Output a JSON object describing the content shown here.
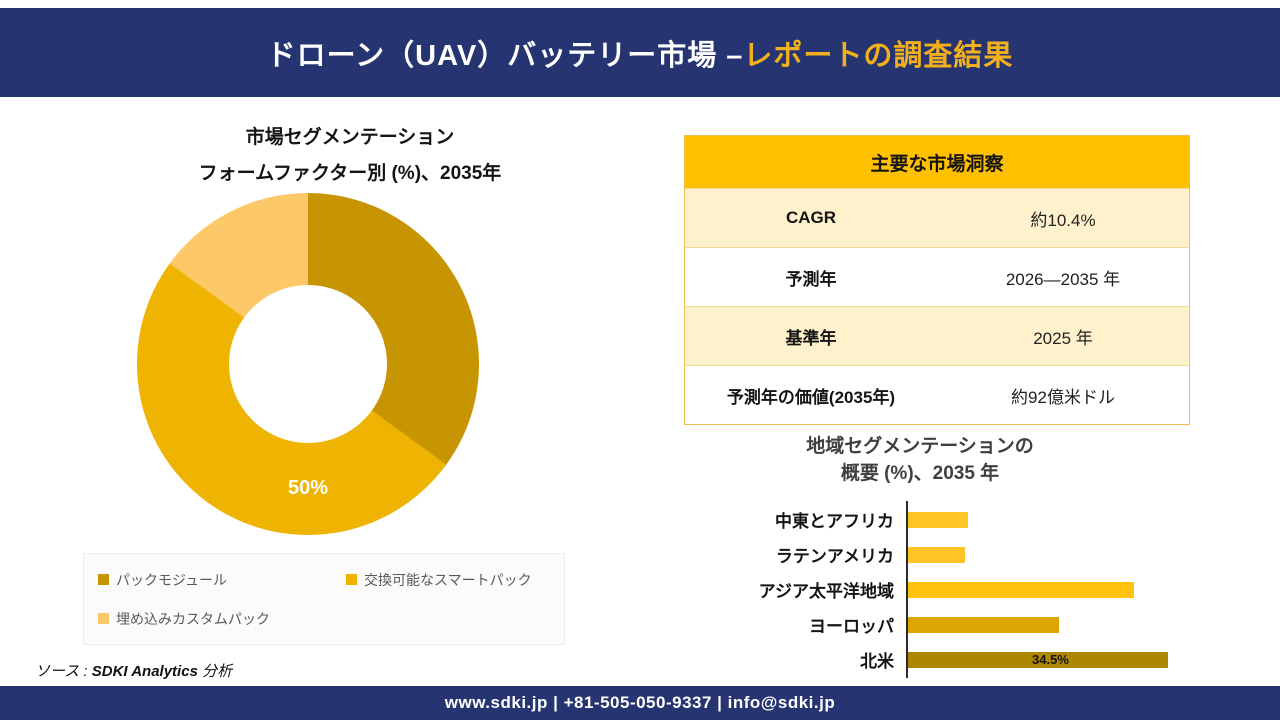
{
  "page": {
    "background": "#ffffff",
    "navy": "#263471",
    "accent_gold": "#F2B01D"
  },
  "header": {
    "title_main": "ドローン（UAV）バッテリー市場 –",
    "title_accent": "レポートの調査結果"
  },
  "donut_section": {
    "title_line1": "市場セグメンテーション",
    "title_line2": "フォームファクター別 (%)、2035年",
    "center_label": "50%"
  },
  "insights_table": {
    "header": "主要な市場洞察",
    "rows": [
      {
        "label": "CAGR",
        "value": "約10.4%"
      },
      {
        "label": "予測年",
        "value": "2026—2035 年"
      },
      {
        "label": "基準年",
        "value": "2025 年"
      },
      {
        "label": "予測年の価値(2035年)",
        "value": "約92億米ドル"
      }
    ],
    "header_bg": "#FFC000",
    "row_bg_alt": "#FFF1CB"
  },
  "bar_section": {
    "title_line1": "地域セグメンテーションの",
    "title_line2": "概要 (%)、2035 年"
  },
  "source_note": {
    "prefix": "ソース : ",
    "name": "SDKI Analytics",
    "suffix": " 分析"
  },
  "footer": {
    "contact": "www.sdki.jp | +81-505-050-9337 | info@sdki.jp"
  },
  "chart_data": [
    {
      "type": "pie",
      "donut": true,
      "title": "市場セグメンテーション フォームファクター別 (%)、2035年",
      "labels": [
        "パックモジュール",
        "交換可能なスマートパック",
        "埋め込みカスタムパック"
      ],
      "values": [
        35,
        50,
        15
      ],
      "colors": [
        "#C79402",
        "#EFB302",
        "#FDC968"
      ],
      "start_angle_deg": 0,
      "hole_ratio": 0.46,
      "visible_data_label": "50%",
      "legend_position": "bottom"
    },
    {
      "type": "bar",
      "orientation": "horizontal",
      "title": "地域セグメンテーションの概要 (%)、2035 年",
      "categories": [
        "中東とアフリカ",
        "ラテンアメリカ",
        "アジア太平洋地域",
        "ヨーロッパ",
        "北米"
      ],
      "values": [
        8,
        7.5,
        30,
        20,
        34.5
      ],
      "colors": [
        "#FFC425",
        "#FFC425",
        "#FFC20D",
        "#DCA602",
        "#AD8702"
      ],
      "value_labels": [
        null,
        null,
        null,
        null,
        "34.5%"
      ],
      "xlim": [
        0,
        38
      ],
      "grid": false
    }
  ]
}
